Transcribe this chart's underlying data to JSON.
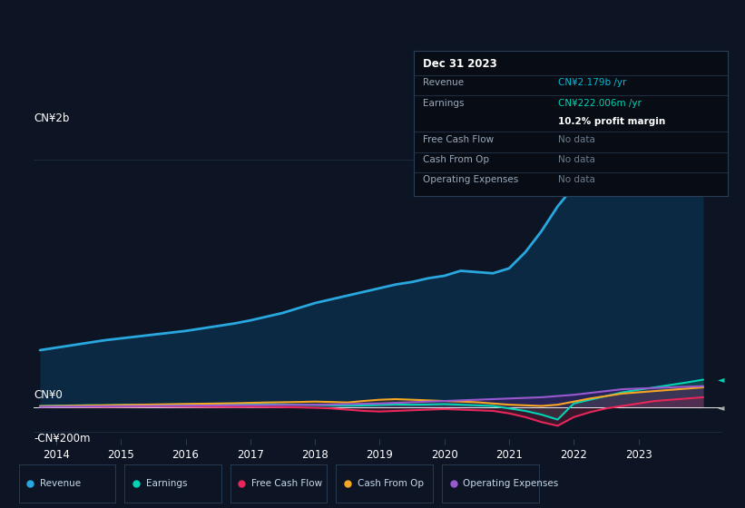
{
  "bg_color": "#0d1525",
  "plot_bg_color": "#0d1525",
  "grid_color": "#1a2d45",
  "text_color": "#ffffff",
  "dim_text_color": "#7a8899",
  "years": [
    2013.75,
    2014.0,
    2014.25,
    2014.5,
    2014.75,
    2015.0,
    2015.25,
    2015.5,
    2015.75,
    2016.0,
    2016.25,
    2016.5,
    2016.75,
    2017.0,
    2017.25,
    2017.5,
    2017.75,
    2018.0,
    2018.25,
    2018.5,
    2018.75,
    2019.0,
    2019.25,
    2019.5,
    2019.75,
    2020.0,
    2020.25,
    2020.5,
    2020.75,
    2021.0,
    2021.25,
    2021.5,
    2021.75,
    2022.0,
    2022.25,
    2022.5,
    2022.75,
    2023.0,
    2023.25,
    2023.5,
    2023.75,
    2024.0
  ],
  "revenue": [
    460,
    480,
    500,
    520,
    540,
    555,
    570,
    585,
    600,
    615,
    635,
    655,
    675,
    700,
    730,
    760,
    800,
    840,
    870,
    900,
    930,
    960,
    990,
    1010,
    1040,
    1060,
    1100,
    1090,
    1080,
    1120,
    1250,
    1420,
    1620,
    1780,
    1850,
    1890,
    1950,
    1970,
    2010,
    2060,
    2120,
    2179
  ],
  "earnings": [
    10,
    12,
    14,
    16,
    15,
    18,
    20,
    19,
    21,
    22,
    23,
    24,
    25,
    26,
    24,
    22,
    20,
    18,
    15,
    12,
    14,
    18,
    22,
    20,
    22,
    25,
    20,
    15,
    10,
    -10,
    -30,
    -60,
    -100,
    30,
    60,
    90,
    120,
    140,
    160,
    180,
    200,
    222
  ],
  "free_cash_flow": [
    5,
    6,
    5,
    4,
    3,
    4,
    5,
    6,
    5,
    4,
    3,
    2,
    1,
    2,
    1,
    0,
    -2,
    -5,
    -10,
    -20,
    -30,
    -35,
    -30,
    -25,
    -20,
    -15,
    -20,
    -25,
    -30,
    -50,
    -80,
    -120,
    -150,
    -80,
    -40,
    -10,
    10,
    30,
    50,
    60,
    70,
    80
  ],
  "cash_from_op": [
    8,
    10,
    12,
    14,
    16,
    18,
    20,
    22,
    24,
    26,
    28,
    30,
    32,
    35,
    38,
    40,
    42,
    45,
    42,
    38,
    50,
    60,
    65,
    60,
    55,
    50,
    45,
    40,
    30,
    20,
    15,
    10,
    20,
    45,
    70,
    90,
    110,
    120,
    130,
    140,
    150,
    160
  ],
  "op_expenses": [
    3,
    4,
    5,
    6,
    7,
    8,
    9,
    10,
    11,
    12,
    13,
    14,
    15,
    16,
    17,
    18,
    19,
    20,
    22,
    25,
    28,
    30,
    35,
    40,
    45,
    50,
    55,
    60,
    65,
    70,
    75,
    80,
    90,
    100,
    115,
    130,
    145,
    150,
    155,
    160,
    165,
    170
  ],
  "revenue_color": "#29a8e0",
  "earnings_color": "#00d4b4",
  "fcf_color": "#e8265a",
  "cfop_color": "#f5a623",
  "opex_color": "#9b59d0",
  "legend_items": [
    {
      "label": "Revenue",
      "color": "#29a8e0"
    },
    {
      "label": "Earnings",
      "color": "#00d4b4"
    },
    {
      "label": "Free Cash Flow",
      "color": "#e8265a"
    },
    {
      "label": "Cash From Op",
      "color": "#f5a623"
    },
    {
      "label": "Operating Expenses",
      "color": "#9b59d0"
    }
  ],
  "info_box": {
    "date": "Dec 31 2023",
    "revenue_label": "Revenue",
    "revenue_value": "CN¥2.179b /yr",
    "earnings_label": "Earnings",
    "earnings_value": "CN¥222.006m /yr",
    "profit_margin": "10.2% profit margin",
    "fcf_label": "Free Cash Flow",
    "fcf_value": "No data",
    "cfop_label": "Cash From Op",
    "cfop_value": "No data",
    "opex_label": "Operating Expenses",
    "opex_value": "No data"
  },
  "xtick_years": [
    2014,
    2015,
    2016,
    2017,
    2018,
    2019,
    2020,
    2021,
    2022,
    2023
  ],
  "ytick_labels_text": [
    "CN¥2b",
    "CN¥0",
    "-CN¥200m"
  ],
  "ytick_vals": [
    2000,
    0,
    -200
  ]
}
